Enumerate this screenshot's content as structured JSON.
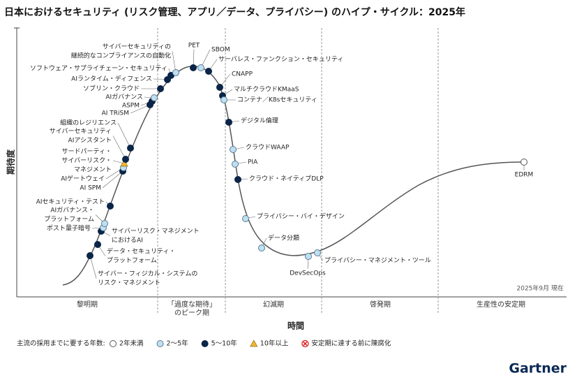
{
  "header": {
    "title": "日本におけるセキュリティ (リスク管理、アプリ／データ、プライバシー) のハイプ・サイクル：2025年"
  },
  "axes": {
    "y": "期待度",
    "x": "時間"
  },
  "date": "2025年9月 現在",
  "phases": [
    [
      "黎明期"
    ],
    [
      "「過度な期待」",
      "のピーク期"
    ],
    [
      "幻滅期"
    ],
    [
      "啓発期"
    ],
    [
      "生産性の安定期"
    ]
  ],
  "legend": {
    "title": "主流の採用までに要する年数:",
    "items": [
      {
        "label": "2年未満"
      },
      {
        "label": "2～5年"
      },
      {
        "label": "5～10年"
      },
      {
        "label": "10年以上"
      },
      {
        "label": "安定期に達する前に陳腐化"
      }
    ]
  },
  "nodes": [
    {
      "label": [
        "サイバー・フィジカル・システムの",
        "リスク・マネジメント"
      ],
      "key": 2
    },
    {
      "label": [
        "データ・セキュリティ・",
        "プラットフォーム"
      ],
      "key": 2
    },
    {
      "label": [
        "サイバーリスク・マネジメント",
        "におけるAI"
      ],
      "key": 2
    },
    {
      "label": [
        "ポスト量子暗号"
      ],
      "key": 1
    },
    {
      "label": [
        "AIガバナンス・",
        "プラットフォーム"
      ],
      "key": 1
    },
    {
      "label": [
        "AIセキュリティ・テスト"
      ],
      "key": 2
    },
    {
      "label": [
        "AI SPM"
      ],
      "key": 2
    },
    {
      "label": [
        "AIゲートウェイ"
      ],
      "key": 1
    },
    {
      "label": [
        "サードパーティ・",
        "サイバーリスク・",
        "マネジメント"
      ],
      "key": 3
    },
    {
      "label": [
        "サイバーセキュリティ",
        "AIアシスタント"
      ],
      "key": 2
    },
    {
      "label": [
        "組織のレジリエンス"
      ],
      "key": 2
    },
    {
      "label": [
        "AI TRiSM"
      ],
      "key": 2
    },
    {
      "label": [
        "ASPM"
      ],
      "key": 2
    },
    {
      "label": [
        "AIガバナンス"
      ],
      "key": 1
    },
    {
      "label": [
        "ソブリン・クラウド"
      ],
      "key": 2
    },
    {
      "label": [
        "AIランタイム・ディフェンス"
      ],
      "key": 2
    },
    {
      "label": [
        "ソフトウェア・サプライチェーン・セキュリティ"
      ],
      "key": 2
    },
    {
      "label": [
        "サイバーセキュリティの",
        "継続的なコンプライアンスの自動化"
      ],
      "key": 1
    },
    {
      "label": [
        "PET"
      ],
      "key": 2
    },
    {
      "label": [
        "SBOM"
      ],
      "key": 1
    },
    {
      "label": [
        "サーバレス・ファンクション・セキュリティ"
      ],
      "key": 2
    },
    {
      "label": [
        "CNAPP"
      ],
      "key": 2
    },
    {
      "label": [
        "マルチクラウドKMaaS"
      ],
      "key": 2
    },
    {
      "label": [
        "コンテナ／K8sセキュリティ"
      ],
      "key": 1
    },
    {
      "label": [
        "デジタル倫理"
      ],
      "key": 2
    },
    {
      "label": [
        "クラウドWAAP"
      ],
      "key": 1
    },
    {
      "label": [
        "PIA"
      ],
      "key": 1
    },
    {
      "label": [
        "クラウド・ネイティブDLP"
      ],
      "key": 2
    },
    {
      "label": [
        "プライバシー・バイ・デザイン"
      ],
      "key": 1
    },
    {
      "label": [
        "データ分類"
      ],
      "key": 1
    },
    {
      "label": [
        "DevSecOps"
      ],
      "key": 1
    },
    {
      "label": [
        "プライバシー・マネジメント・ツール"
      ],
      "key": 1
    },
    {
      "label": [
        "EDRM"
      ],
      "key": 0
    }
  ],
  "logo": "Gartner"
}
